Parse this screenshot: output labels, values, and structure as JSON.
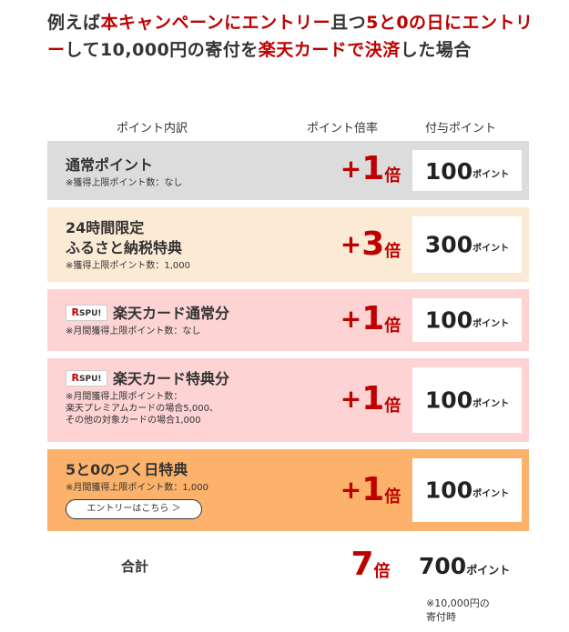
{
  "headline": {
    "parts": [
      {
        "text": "例えば",
        "red": false
      },
      {
        "text": "本キャンペーンにエントリー",
        "red": true
      },
      {
        "text": "且つ",
        "red": false
      },
      {
        "text": "5と0の日にエントリー",
        "red": true
      },
      {
        "text": "して10,000円の寄付を",
        "red": false
      },
      {
        "text": "楽天カードで決済",
        "red": true
      },
      {
        "text": "した場合",
        "red": false
      }
    ]
  },
  "columns": {
    "breakdown": "ポイント内訳",
    "multiplier": "ポイント倍率",
    "granted": "付与ポイント"
  },
  "rows": [
    {
      "title": "通常ポイント",
      "title2": "",
      "badge": false,
      "notes": [
        "※獲得上限ポイント数：なし"
      ],
      "plus": "+",
      "mult": "1",
      "bai": "倍",
      "points": "100",
      "unit": "ポイント",
      "bg": "#dcdcdc",
      "entry": false
    },
    {
      "title": "24時間限定",
      "title2": "ふるさと納税特典",
      "badge": false,
      "notes": [
        "※獲得上限ポイント数：1,000"
      ],
      "plus": "+",
      "mult": "3",
      "bai": "倍",
      "points": "300",
      "unit": "ポイント",
      "bg": "#fbebd5",
      "entry": false
    },
    {
      "title": "楽天カード通常分",
      "title2": "",
      "badge": true,
      "notes": [
        "※月間獲得上限ポイント数：なし"
      ],
      "plus": "+",
      "mult": "1",
      "bai": "倍",
      "points": "100",
      "unit": "ポイント",
      "bg": "#fdd3d3",
      "entry": false
    },
    {
      "title": "楽天カード特典分",
      "title2": "",
      "badge": true,
      "notes": [
        "※月間獲得上限ポイント数：",
        "楽天プレミアムカードの場合5,000、",
        "その他の対象カードの場合1,000"
      ],
      "plus": "+",
      "mult": "1",
      "bai": "倍",
      "points": "100",
      "unit": "ポイント",
      "bg": "#fdd3d3",
      "entry": false
    },
    {
      "title": "5と0のつく日特典",
      "title2": "",
      "badge": false,
      "notes": [
        "※月間獲得上限ポイント数：1,000"
      ],
      "plus": "+",
      "mult": "1",
      "bai": "倍",
      "points": "100",
      "unit": "ポイント",
      "bg": "#fcb26a",
      "entry": true
    }
  ],
  "badge": {
    "r": "R",
    "text": "SPU!"
  },
  "entry_button": "エントリーはこちら ＞",
  "total": {
    "label": "合計",
    "mult": "7",
    "bai": "倍",
    "points": "700",
    "unit": "ポイント",
    "note1": "※10,000円の",
    "note2": "寄付時"
  },
  "colors": {
    "accent_red": "#bf0000"
  }
}
